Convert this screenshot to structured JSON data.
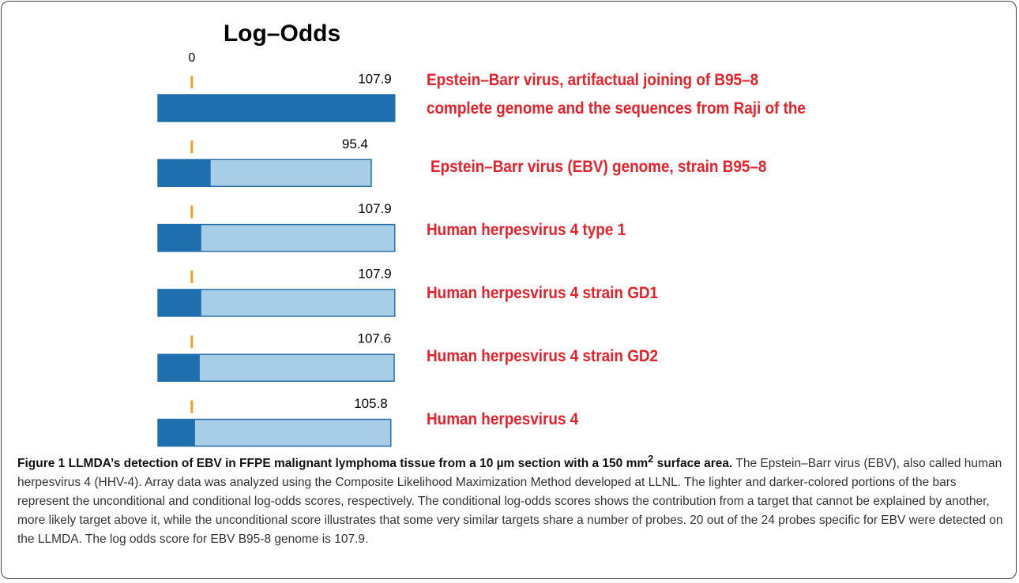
{
  "chart_data": {
    "type": "bar",
    "orientation": "horizontal",
    "title": "Log–Odds",
    "categories": [
      "Epstein–Barr virus, artifactual joining of B95–8\ncomplete genome and the sequences from Raji of the",
      "Epstein–Barr virus (EBV) genome, strain B95–8",
      "Human herpesvirus 4 type 1",
      "Human herpesvirus 4 strain GD1",
      "Human herpesvirus 4 strain GD2",
      "Human herpesvirus 4"
    ],
    "values": [
      107.9,
      95.4,
      107.9,
      107.9,
      107.6,
      105.8
    ],
    "color": "#a8cde6",
    "conditional_values": [
      107.9,
      10,
      5,
      5,
      4.2,
      1.7
    ],
    "conditional_color": "#1f6eae",
    "label_color": "#e8202a",
    "zero_color": "#f0a020",
    "xlim": [
      -18,
      108
    ],
    "xticks": [
      0
    ]
  },
  "caption": {
    "label": "Figure 1",
    "title": "LLMDA’s detection of EBV in FFPE malignant lymphoma tissue from a 10 µm section with a 150 mm",
    "title_sup": "2",
    "title_end": " surface area.",
    "body": "The Epstein–Barr virus (EBV), also called human herpesvirus 4 (HHV-4). Array data was analyzed using the Composite Likelihood Maximization Method developed at LLNL. The lighter and darker-colored portions of the bars represent the unconditional and conditional log-odds scores, respectively. The conditional log-odds scores shows the contribution from a target that cannot be explained by another, more likely target above it, while the unconditional score illustrates that some very similar targets share a number of probes. 20 out of the 24 probes specific for EBV were detected on the LLMDA. The log odds score for EBV B95-8 genome is 107.9."
  }
}
